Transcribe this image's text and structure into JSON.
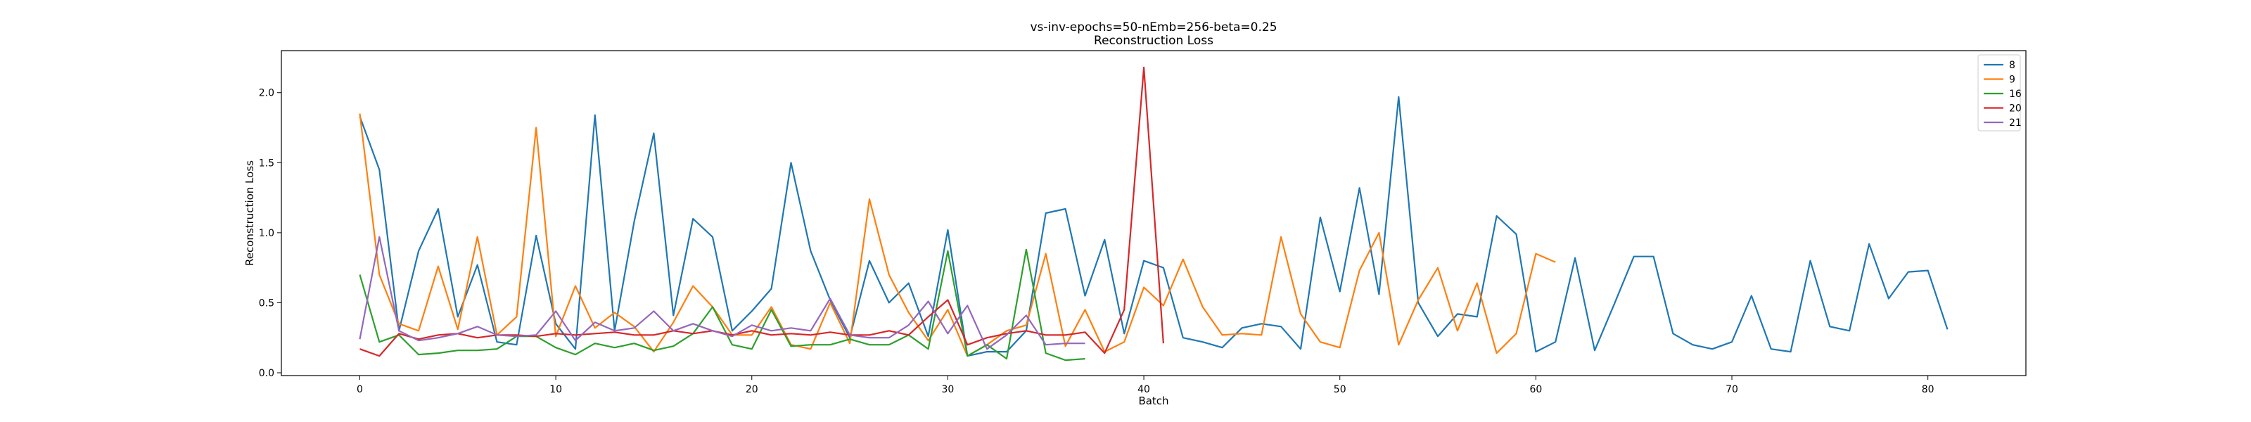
{
  "chart_data": {
    "type": "line",
    "title": "vs-inv-epochs=50-nEmb=256-beta=0.25",
    "subtitle": "Reconstruction Loss",
    "xlabel": "Batch",
    "ylabel": "Reconstruction Loss",
    "xlim": [
      -4,
      85
    ],
    "ylim": [
      -0.02,
      2.3
    ],
    "xticks": [
      0,
      10,
      20,
      30,
      40,
      50,
      60,
      70,
      80
    ],
    "yticks": [
      0.0,
      0.5,
      1.0,
      1.5,
      2.0
    ],
    "xtick_labels": [
      "0",
      "10",
      "20",
      "30",
      "40",
      "50",
      "60",
      "70",
      "80"
    ],
    "ytick_labels": [
      "0.0",
      "0.5",
      "1.0",
      "1.5",
      "2.0"
    ],
    "grid": false,
    "legend_position": "top-right",
    "series": [
      {
        "name": "8",
        "color": "#1f77b4",
        "values": [
          1.83,
          1.45,
          0.3,
          0.87,
          1.17,
          0.4,
          0.77,
          0.22,
          0.2,
          0.98,
          0.35,
          0.17,
          1.84,
          0.3,
          1.08,
          1.71,
          0.41,
          1.1,
          0.97,
          0.3,
          0.44,
          0.6,
          1.5,
          0.87,
          0.52,
          0.25,
          0.8,
          0.5,
          0.64,
          0.26,
          1.02,
          0.12,
          0.15,
          0.15,
          0.3,
          1.14,
          1.17,
          0.55,
          0.95,
          0.28,
          0.8,
          0.75,
          0.25,
          0.22,
          0.18,
          0.32,
          0.35,
          0.33,
          0.17,
          1.11,
          0.58,
          1.32,
          0.56,
          1.97,
          0.5,
          0.26,
          0.42,
          0.4,
          1.12,
          0.99,
          0.15,
          0.22,
          0.82,
          0.16,
          0.49,
          0.83,
          0.83,
          0.28,
          0.2,
          0.17,
          0.22,
          0.55,
          0.17,
          0.15,
          0.8,
          0.33,
          0.3,
          0.92,
          0.53,
          0.72,
          0.73,
          0.31
        ]
      },
      {
        "name": "9",
        "color": "#ff7f0e",
        "values": [
          1.85,
          0.7,
          0.35,
          0.3,
          0.76,
          0.31,
          0.97,
          0.27,
          0.4,
          1.75,
          0.26,
          0.62,
          0.32,
          0.43,
          0.33,
          0.15,
          0.36,
          0.62,
          0.47,
          0.27,
          0.27,
          0.47,
          0.2,
          0.17,
          0.5,
          0.21,
          1.24,
          0.7,
          0.43,
          0.23,
          0.45,
          0.12,
          0.2,
          0.3,
          0.34,
          0.85,
          0.19,
          0.45,
          0.15,
          0.22,
          0.61,
          0.48,
          0.81,
          0.47,
          0.27,
          0.28,
          0.27,
          0.97,
          0.42,
          0.22,
          0.18,
          0.73,
          1.0,
          0.2,
          0.52,
          0.75,
          0.3,
          0.64,
          0.14,
          0.28,
          0.85,
          0.79
        ]
      },
      {
        "name": "16",
        "color": "#2ca02c",
        "values": [
          0.7,
          0.22,
          0.27,
          0.13,
          0.14,
          0.16,
          0.16,
          0.17,
          0.26,
          0.26,
          0.18,
          0.13,
          0.21,
          0.18,
          0.21,
          0.16,
          0.19,
          0.28,
          0.47,
          0.2,
          0.17,
          0.45,
          0.19,
          0.2,
          0.2,
          0.24,
          0.2,
          0.2,
          0.27,
          0.17,
          0.87,
          0.12,
          0.2,
          0.1,
          0.88,
          0.14,
          0.09,
          0.1
        ]
      },
      {
        "name": "20",
        "color": "#d62728",
        "values": [
          0.17,
          0.12,
          0.28,
          0.24,
          0.27,
          0.28,
          0.25,
          0.27,
          0.27,
          0.26,
          0.28,
          0.27,
          0.28,
          0.29,
          0.27,
          0.27,
          0.3,
          0.28,
          0.3,
          0.27,
          0.3,
          0.27,
          0.28,
          0.27,
          0.29,
          0.27,
          0.27,
          0.3,
          0.27,
          0.4,
          0.52,
          0.2,
          0.25,
          0.28,
          0.3,
          0.27,
          0.27,
          0.29,
          0.14,
          0.45,
          2.18,
          0.21
        ]
      },
      {
        "name": "21",
        "color": "#9467bd",
        "values": [
          0.24,
          0.97,
          0.3,
          0.23,
          0.25,
          0.28,
          0.33,
          0.27,
          0.26,
          0.27,
          0.44,
          0.23,
          0.36,
          0.3,
          0.32,
          0.44,
          0.3,
          0.35,
          0.3,
          0.26,
          0.34,
          0.3,
          0.32,
          0.3,
          0.53,
          0.27,
          0.25,
          0.25,
          0.34,
          0.51,
          0.28,
          0.48,
          0.17,
          0.27,
          0.41,
          0.2,
          0.21,
          0.21
        ]
      }
    ]
  }
}
